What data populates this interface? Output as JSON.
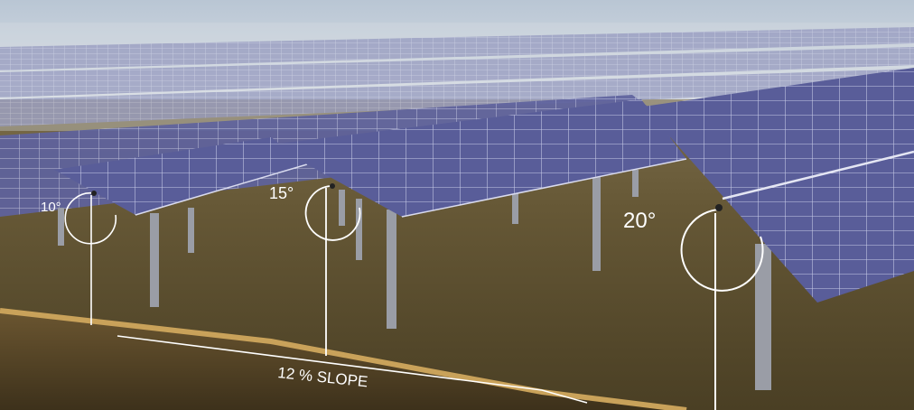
{
  "annotations": {
    "angle_1": "10°",
    "angle_2": "15°",
    "angle_3": "20°",
    "slope": "12 % SLOPE"
  },
  "colors": {
    "sky": "#cfd6de",
    "ground": "#5d5030",
    "soil_edge": "#c9a25a",
    "panel": "#5b5f9c",
    "panel_grid": "#c3c6e4",
    "post": "#9da0a8",
    "marker": "#ffffff"
  }
}
